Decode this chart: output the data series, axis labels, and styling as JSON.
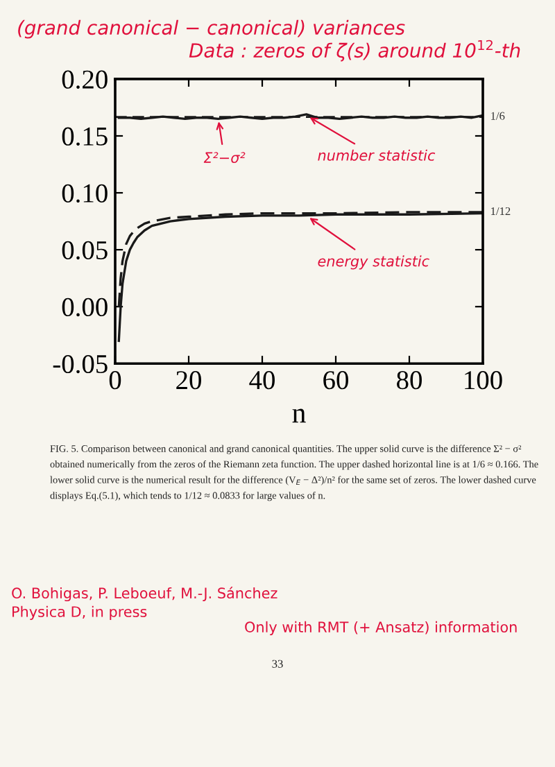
{
  "chart_data": {
    "type": "line",
    "title": "(grand canonical − canonical) variances",
    "subtitle": "Data : zeros of ζ(s) around 10$^{12}$-th",
    "xlabel": "n",
    "series": [
      {
        "color": "#1a1a1a",
        "line_style": "solid",
        "x": [
          1,
          4,
          7,
          10,
          13,
          16,
          19,
          22,
          25,
          28,
          31,
          34,
          37,
          40,
          43,
          46,
          49,
          52,
          55,
          58,
          61,
          64,
          67,
          70,
          73,
          76,
          79,
          82,
          85,
          88,
          91,
          94,
          97,
          100
        ],
        "values": [
          0.166,
          0.166,
          0.165,
          0.166,
          0.167,
          0.166,
          0.165,
          0.166,
          0.166,
          0.165,
          0.166,
          0.167,
          0.166,
          0.165,
          0.166,
          0.166,
          0.167,
          0.169,
          0.166,
          0.166,
          0.165,
          0.166,
          0.167,
          0.166,
          0.166,
          0.167,
          0.166,
          0.166,
          0.167,
          0.166,
          0.166,
          0.167,
          0.166,
          0.168
        ]
      },
      {
        "color": "#1a1a1a",
        "line_style": "solid",
        "x": [
          1,
          1.5,
          2,
          3,
          4,
          5,
          6,
          8,
          10,
          15,
          20,
          30,
          40,
          50,
          60,
          80,
          100
        ],
        "values": [
          -0.03,
          0.0,
          0.02,
          0.04,
          0.05,
          0.056,
          0.061,
          0.067,
          0.071,
          0.075,
          0.077,
          0.079,
          0.08,
          0.08,
          0.081,
          0.081,
          0.082
        ]
      },
      {
        "color": "#1a1a1a",
        "line_style": "dashed",
        "x": [
          1,
          1.5,
          2,
          3,
          4,
          5,
          6,
          8,
          10,
          15,
          20,
          30,
          40,
          60,
          80,
          100
        ],
        "values": [
          0.0,
          0.025,
          0.04,
          0.055,
          0.062,
          0.066,
          0.069,
          0.073,
          0.075,
          0.078,
          0.079,
          0.081,
          0.082,
          0.082,
          0.083,
          0.083
        ]
      }
    ],
    "ref_lines": [
      {
        "axis": "y",
        "value": 0.166667,
        "line_style": "dashed",
        "color": "#1a1a1a"
      }
    ],
    "xlim": [
      0,
      100
    ],
    "xticks": [
      0,
      20,
      40,
      60,
      80,
      100
    ],
    "ylim": [
      -0.05,
      0.2
    ],
    "yticks": [
      {
        "value": -0.05,
        "label": "-0.05"
      },
      {
        "value": 0.0,
        "label": "0.00"
      },
      {
        "value": 0.05,
        "label": "0.05"
      },
      {
        "value": 0.1,
        "label": "0.10"
      },
      {
        "value": 0.15,
        "label": "0.15"
      },
      {
        "value": 0.2,
        "label": "0.20"
      }
    ],
    "grid": false,
    "annotations": [
      {
        "text": "Σ²−σ²",
        "x": 28,
        "y": 0.166
      },
      {
        "text": "number statistic",
        "x": 52,
        "y": 0.168
      },
      {
        "text": "energy statistic",
        "x": 52,
        "y": 0.08
      },
      {
        "text": "1/12",
        "x": 100,
        "y": 0.083
      },
      {
        "text": "1/6",
        "x": 100,
        "y": 0.166667
      },
      "FIG. 5. Comparison between canonical and grand canonical quantities. The upper solid curve is the difference Σ² − σ² obtained numerically from the zeros of the Riemann zeta function. The upper dashed horizontal line is at 1/6 ≈ 0.166. The lower solid curve is the numerical result for the difference (V$_{E}$ − Δ²)/n² for the same set of zeros. The lower dashed curve displays Eq.(5.1), which tends to 1/12 ≈ 0.0833 for large values of n.",
      "O. Bohigas, P. Leboeuf, M.-J. Sánchez",
      "Physica D, in press",
      "Only with RMT (+ Ansatz) information",
      "33"
    ]
  }
}
